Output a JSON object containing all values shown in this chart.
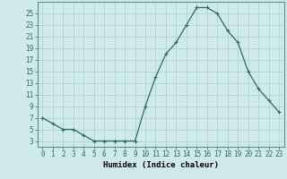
{
  "x": [
    0,
    1,
    2,
    3,
    4,
    5,
    6,
    7,
    8,
    9,
    10,
    11,
    12,
    13,
    14,
    15,
    16,
    17,
    18,
    19,
    20,
    21,
    22,
    23
  ],
  "y": [
    7,
    6,
    5,
    5,
    4,
    3,
    3,
    3,
    3,
    3,
    9,
    14,
    18,
    20,
    23,
    26,
    26,
    25,
    22,
    20,
    15,
    12,
    10,
    8
  ],
  "line_color": "#2e6b60",
  "marker": "+",
  "marker_size": 3,
  "marker_lw": 0.8,
  "bg_color": "#ceeaea",
  "grid_color": "#aacece",
  "xlabel": "Humidex (Indice chaleur)",
  "xlabel_fontsize": 6.5,
  "ylabel_ticks": [
    3,
    5,
    7,
    9,
    11,
    13,
    15,
    17,
    19,
    21,
    23,
    25
  ],
  "xlim": [
    -0.5,
    23.5
  ],
  "ylim": [
    2,
    27
  ],
  "tick_fontsize": 5.5,
  "line_width": 0.9
}
